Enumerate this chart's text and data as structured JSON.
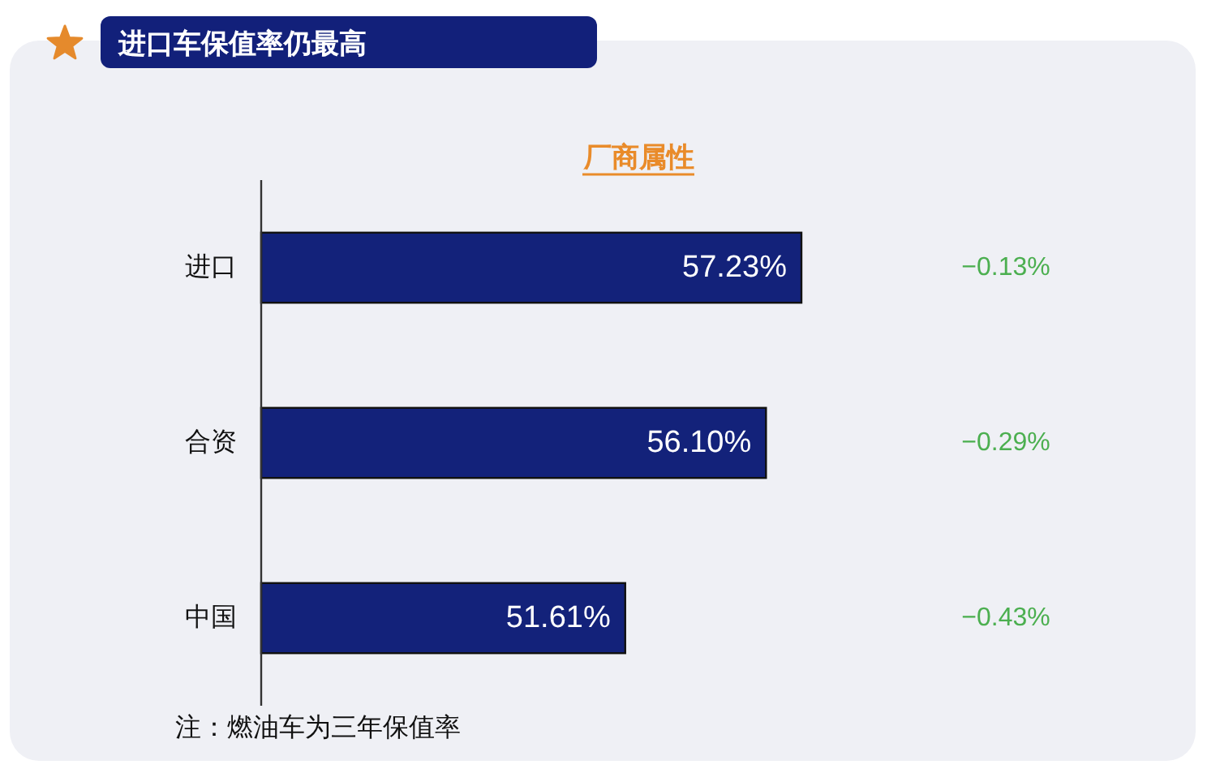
{
  "chart_data": {
    "type": "bar",
    "orientation": "horizontal",
    "title": "进口车保值率仍最高",
    "subtitle": "厂商属性",
    "categories": [
      "进口",
      "合资",
      "中国"
    ],
    "values": [
      57.23,
      56.1,
      51.61
    ],
    "value_labels": [
      "57.23%",
      "56.10%",
      "51.61%"
    ],
    "color": "#13227a",
    "xlim": [
      40,
      57.23
    ],
    "tick_labels": "y",
    "annotations": [
      "−0.13%",
      "−0.29%",
      "−0.43%",
      "注：燃油车为三年保值率"
    ]
  }
}
